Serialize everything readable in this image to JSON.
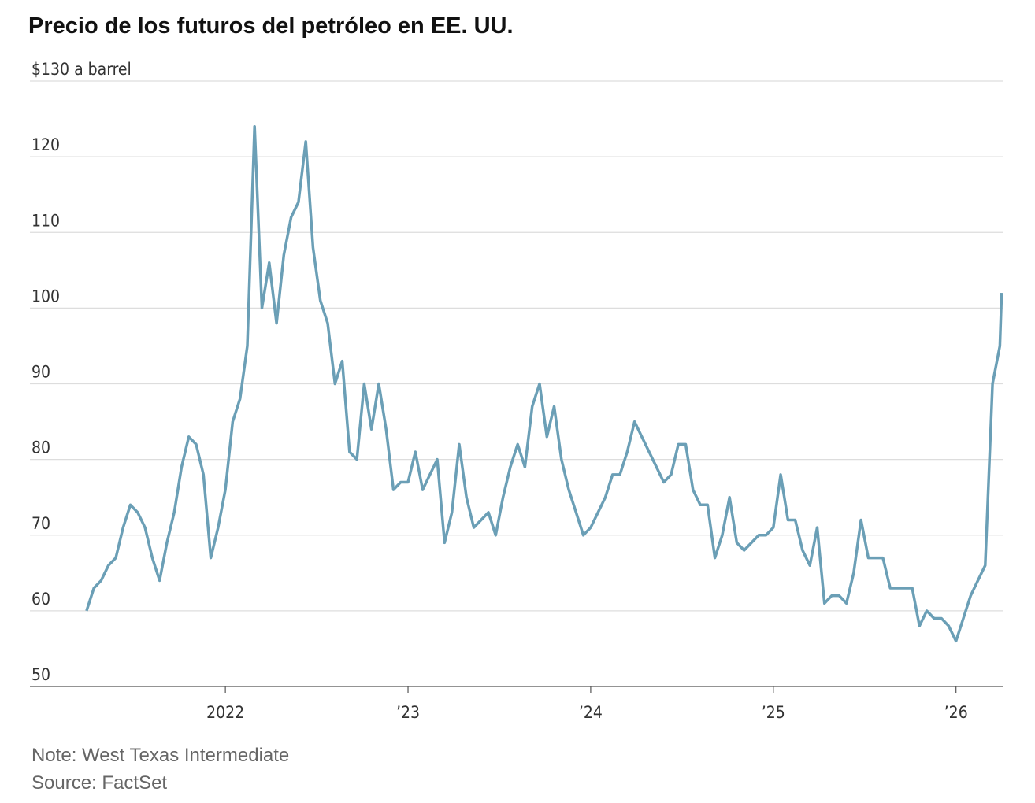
{
  "chart_data": {
    "type": "line",
    "title": "Precio de los futuros del petróleo en EE. UU.",
    "note": "Note: West Texas Intermediate",
    "source": "Source: FactSet",
    "color": "#6b9fb6",
    "grid": true,
    "xlim": [
      2020.93,
      2026.26
    ],
    "xticks": [
      2022,
      {
        "value": 2023,
        "label": "’23"
      },
      {
        "value": 2024,
        "label": "’24"
      },
      {
        "value": 2025,
        "label": "’25"
      },
      {
        "value": 2026,
        "label": "’26"
      }
    ],
    "ylim": [
      50,
      130
    ],
    "yticks": [
      50,
      60,
      70,
      80,
      90,
      100,
      110,
      120,
      {
        "value": 130,
        "label": "$130 a barrel"
      }
    ],
    "x": [
      2021.24,
      2021.28,
      2021.32,
      2021.36,
      2021.4,
      2021.44,
      2021.48,
      2021.52,
      2021.56,
      2021.6,
      2021.64,
      2021.68,
      2021.72,
      2021.76,
      2021.8,
      2021.84,
      2021.88,
      2021.92,
      2021.96,
      2022.0,
      2022.04,
      2022.08,
      2022.12,
      2022.16,
      2022.2,
      2022.24,
      2022.28,
      2022.32,
      2022.36,
      2022.4,
      2022.44,
      2022.48,
      2022.52,
      2022.56,
      2022.6,
      2022.64,
      2022.68,
      2022.72,
      2022.76,
      2022.8,
      2022.84,
      2022.88,
      2022.92,
      2022.96,
      2023.0,
      2023.04,
      2023.08,
      2023.12,
      2023.16,
      2023.2,
      2023.24,
      2023.28,
      2023.32,
      2023.36,
      2023.4,
      2023.44,
      2023.48,
      2023.52,
      2023.56,
      2023.6,
      2023.64,
      2023.68,
      2023.72,
      2023.76,
      2023.8,
      2023.84,
      2023.88,
      2023.92,
      2023.96,
      2024.0,
      2024.04,
      2024.08,
      2024.12,
      2024.16,
      2024.2,
      2024.24,
      2024.28,
      2024.32,
      2024.36,
      2024.4,
      2024.44,
      2024.48,
      2024.52,
      2024.56,
      2024.6,
      2024.64,
      2024.68,
      2024.72,
      2024.76,
      2024.8,
      2024.84,
      2024.88,
      2024.92,
      2024.96,
      2025.0,
      2025.04,
      2025.08,
      2025.12,
      2025.16,
      2025.2,
      2025.24,
      2025.28,
      2025.32,
      2025.36,
      2025.4,
      2025.44,
      2025.48,
      2025.52,
      2025.56,
      2025.6,
      2025.64,
      2025.68,
      2025.72,
      2025.76,
      2025.8,
      2025.84,
      2025.88,
      2025.92,
      2025.96,
      2026.0,
      2026.04,
      2026.08,
      2026.12,
      2026.16,
      2026.2,
      2026.24,
      2026.25
    ],
    "values": [
      60,
      63,
      64,
      66,
      67,
      71,
      74,
      73,
      71,
      67,
      64,
      69,
      73,
      79,
      83,
      82,
      78,
      67,
      71,
      76,
      85,
      88,
      95,
      124,
      100,
      106,
      98,
      107,
      112,
      114,
      122,
      108,
      101,
      98,
      90,
      93,
      81,
      80,
      90,
      84,
      90,
      84,
      76,
      77,
      77,
      81,
      76,
      78,
      80,
      69,
      73,
      82,
      75,
      71,
      72,
      73,
      70,
      75,
      79,
      82,
      79,
      87,
      90,
      83,
      87,
      80,
      76,
      73,
      70,
      71,
      73,
      75,
      78,
      78,
      81,
      85,
      83,
      81,
      79,
      77,
      78,
      82,
      82,
      76,
      74,
      74,
      67,
      70,
      75,
      69,
      68,
      69,
      70,
      70,
      71,
      78,
      72,
      72,
      68,
      66,
      71,
      61,
      62,
      62,
      61,
      65,
      72,
      67,
      67,
      67,
      63,
      63,
      63,
      63,
      58,
      60,
      59,
      59,
      58,
      56,
      59,
      62,
      64,
      66,
      90,
      95,
      102
    ]
  }
}
